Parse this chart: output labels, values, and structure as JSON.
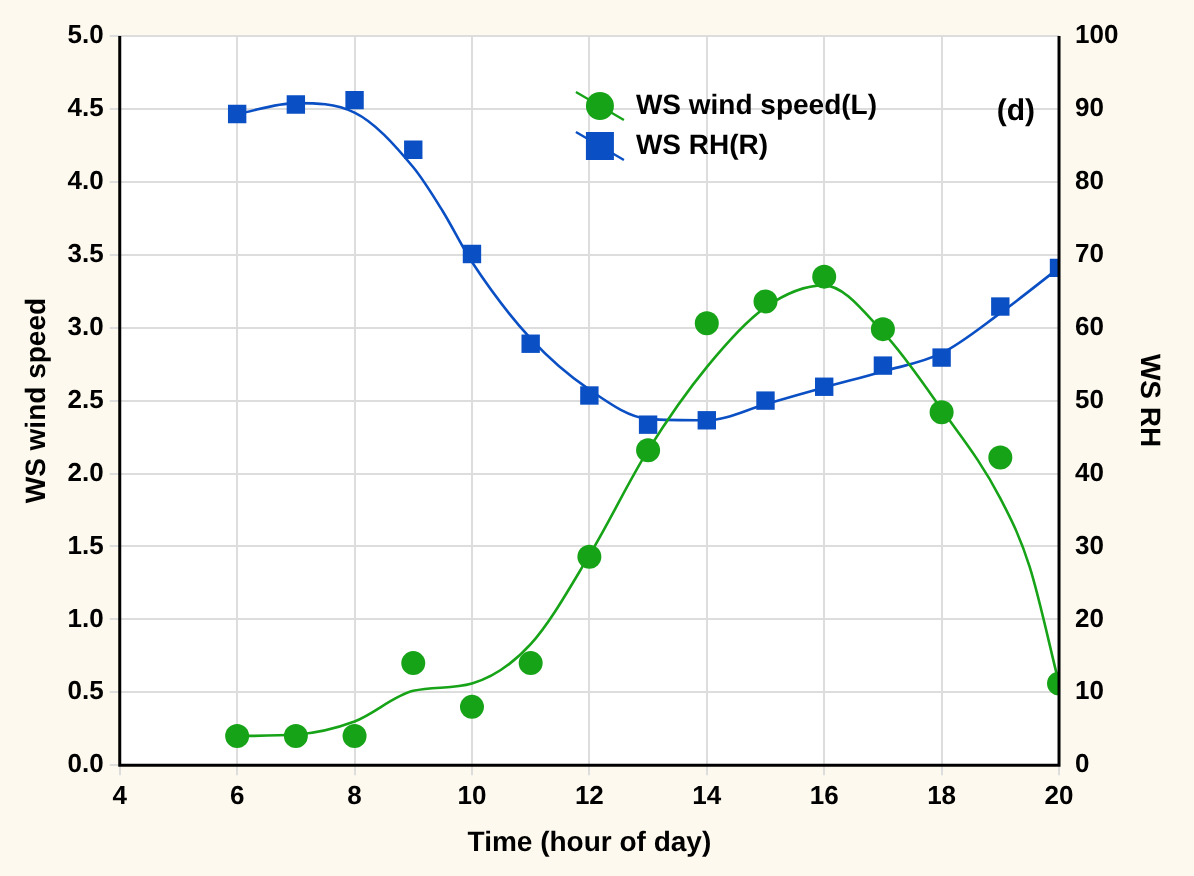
{
  "chart_data": {
    "type": "scatter",
    "xlabel": "Time (hour of day)",
    "ylabel": "WS wind speed",
    "y2label": "WS RH",
    "annotations": [
      "(d)"
    ],
    "xlim": [
      4,
      20
    ],
    "xticks": [
      4,
      6,
      8,
      10,
      12,
      14,
      16,
      18,
      20
    ],
    "ylim": [
      0,
      5
    ],
    "yticks": [
      {
        "value": 0,
        "label": "0.0"
      },
      {
        "value": 0.5,
        "label": "0.5"
      },
      {
        "value": 1,
        "label": "1.0"
      },
      {
        "value": 1.5,
        "label": "1.5"
      },
      {
        "value": 2,
        "label": "2.0"
      },
      {
        "value": 2.5,
        "label": "2.5"
      },
      {
        "value": 3,
        "label": "3.0"
      },
      {
        "value": 3.5,
        "label": "3.5"
      },
      {
        "value": 4,
        "label": "4.0"
      },
      {
        "value": 4.5,
        "label": "4.5"
      },
      {
        "value": 5,
        "label": "5.0"
      }
    ],
    "y2lim": [
      0,
      100
    ],
    "y2ticks": [
      0,
      10,
      20,
      30,
      40,
      50,
      60,
      70,
      80,
      90,
      100
    ],
    "grid": true,
    "legend": "top right",
    "x": [
      6,
      7,
      8,
      9,
      10,
      11,
      12,
      13,
      14,
      15,
      16,
      17,
      18,
      19,
      20
    ],
    "series": [
      {
        "name": "WS wind speed(L)",
        "marker": "circle",
        "color": "#17a317",
        "values": [
          0.2,
          0.2,
          0.2,
          0.7,
          0.4,
          0.7,
          1.43,
          2.16,
          3.03,
          3.18,
          3.35,
          2.99,
          2.42,
          2.11,
          0.56
        ]
      },
      {
        "name": "WS RH(R)",
        "marker": "square",
        "axis": "y2",
        "color": "#0a4fc4",
        "values": [
          89.3,
          90.6,
          91.2,
          84.4,
          70.1,
          57.8,
          50.7,
          46.7,
          47.3,
          50.0,
          51.9,
          54.8,
          55.9,
          62.9,
          68.2
        ]
      },
      {
        "type": "line",
        "marker": "none",
        "color": "#17a317",
        "x": [
          6,
          7,
          8,
          9,
          10,
          11,
          12,
          13,
          14,
          15,
          16,
          17,
          18,
          19,
          19.5,
          20
        ],
        "values": [
          0.2,
          0.21,
          0.3,
          0.51,
          0.56,
          0.83,
          1.44,
          2.16,
          2.73,
          3.14,
          3.29,
          2.97,
          2.44,
          1.83,
          1.36,
          0.56
        ]
      },
      {
        "type": "line",
        "marker": "none",
        "axis": "y2",
        "color": "#0a4fc4",
        "x": [
          6,
          7,
          8,
          9,
          9.5,
          10,
          11,
          12,
          13,
          14,
          15,
          16,
          17,
          18,
          19,
          20
        ],
        "values": [
          89.3,
          90.8,
          89.5,
          82,
          76,
          69,
          58.5,
          51.5,
          47.5,
          47.3,
          49.5,
          51.8,
          54,
          56.5,
          62,
          68.2
        ]
      }
    ]
  }
}
